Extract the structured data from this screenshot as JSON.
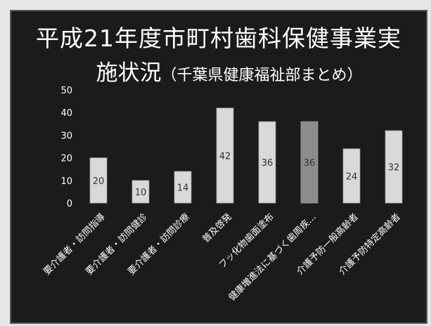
{
  "slide": {
    "title_line1": "平成21年度市町村歯科保健事業実",
    "title_line2_main": "施状況",
    "title_line2_sub": "（千葉県健康福祉部まとめ）"
  },
  "chart_data": {
    "type": "bar",
    "title": "平成21年度市町村歯科保健事業実施状況（千葉県健康福祉部まとめ）",
    "categories": [
      "要介護者・訪問指導",
      "要介護者・訪問健診",
      "要介護者・訪問診療",
      "普及啓発",
      "フッ化物歯面塗布",
      "健康増進法に基づく歯周疾…",
      "介護予防一般高齢者",
      "介護予防特定高齢者"
    ],
    "values": [
      20,
      10,
      14,
      42,
      36,
      36,
      24,
      32
    ],
    "highlight_index": 5,
    "ylim": [
      0,
      50
    ],
    "yticks": [
      0,
      10,
      20,
      30,
      40,
      50
    ],
    "grid": false,
    "data_labels": true,
    "colors": {
      "bar": "#d9d9d9",
      "bar_highlight": "#8c8c8c",
      "text": "#ffffff",
      "label": "#333333"
    }
  }
}
